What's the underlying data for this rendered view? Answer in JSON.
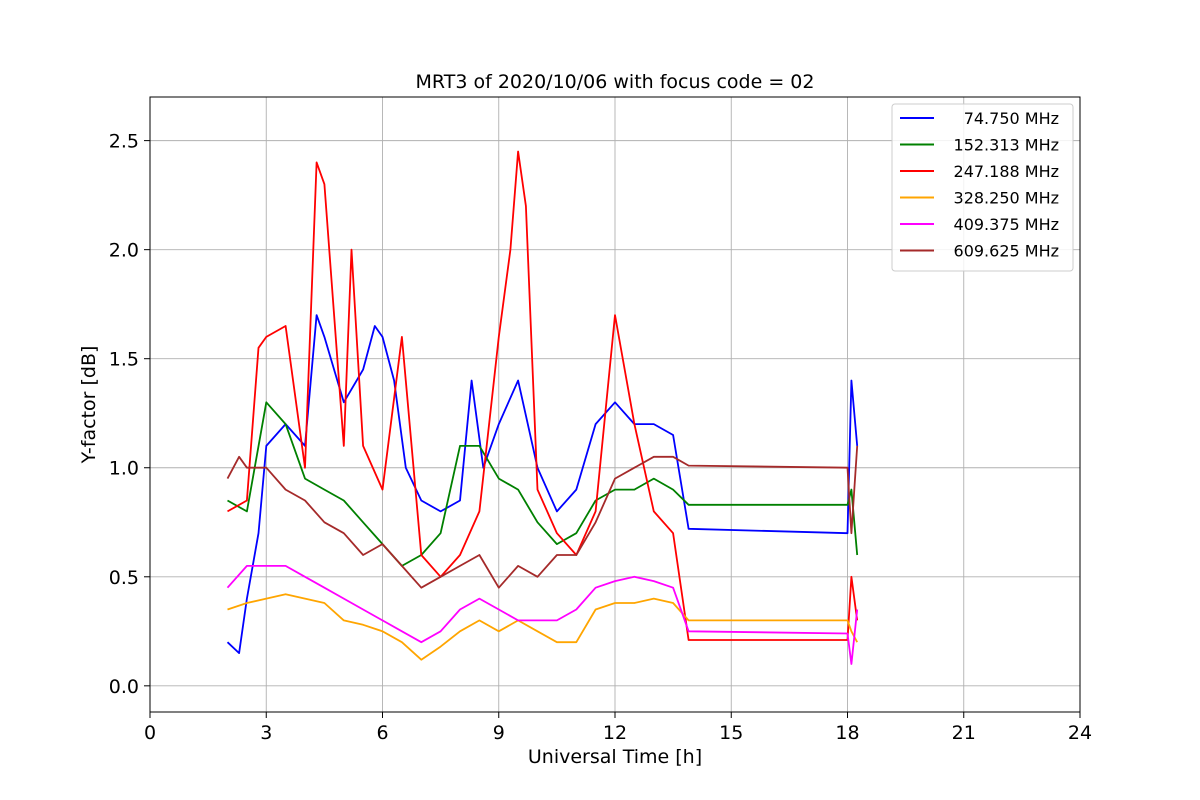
{
  "chart_data": {
    "type": "line",
    "title": "MRT3 of 2020/10/06 with focus code = 02",
    "xlabel": "Universal Time [h]",
    "ylabel": "Y-factor [dB]",
    "xlim": [
      0,
      24
    ],
    "ylim": [
      -0.12,
      2.7
    ],
    "xticks": [
      0,
      3,
      6,
      9,
      12,
      15,
      18,
      21,
      24
    ],
    "yticks": [
      0.0,
      0.5,
      1.0,
      1.5,
      2.0,
      2.5
    ],
    "xtick_labels": [
      "0",
      "3",
      "6",
      "9",
      "12",
      "15",
      "18",
      "21",
      "24"
    ],
    "ytick_labels": [
      "0.0",
      "0.5",
      "1.0",
      "1.5",
      "2.0",
      "2.5"
    ],
    "grid": true,
    "legend_position": "top-right",
    "series": [
      {
        "name": "74.750 MHz",
        "color": "#0000ff",
        "x": [
          2.0,
          2.3,
          2.5,
          2.8,
          3.0,
          3.5,
          4.0,
          4.3,
          4.5,
          5.0,
          5.5,
          5.8,
          6.0,
          6.3,
          6.6,
          7.0,
          7.5,
          8.0,
          8.3,
          8.6,
          9.0,
          9.5,
          10.0,
          10.5,
          11.0,
          11.5,
          12.0,
          12.5,
          13.0,
          13.5,
          13.9,
          18.0,
          18.1,
          18.25
        ],
        "y": [
          0.2,
          0.15,
          0.4,
          0.7,
          1.1,
          1.2,
          1.1,
          1.7,
          1.6,
          1.3,
          1.45,
          1.65,
          1.6,
          1.4,
          1.0,
          0.85,
          0.8,
          0.85,
          1.4,
          1.0,
          1.2,
          1.4,
          1.0,
          0.8,
          0.9,
          1.2,
          1.3,
          1.2,
          1.2,
          1.15,
          0.72,
          0.7,
          1.4,
          1.1
        ]
      },
      {
        "name": "152.313 MHz",
        "color": "#008000",
        "x": [
          2.0,
          2.5,
          3.0,
          3.5,
          4.0,
          4.5,
          5.0,
          5.5,
          6.0,
          6.5,
          7.0,
          7.5,
          8.0,
          8.5,
          9.0,
          9.5,
          10.0,
          10.5,
          11.0,
          11.5,
          12.0,
          12.5,
          13.0,
          13.5,
          13.9,
          18.0,
          18.1,
          18.25
        ],
        "y": [
          0.85,
          0.8,
          1.3,
          1.2,
          0.95,
          0.9,
          0.85,
          0.75,
          0.65,
          0.55,
          0.6,
          0.7,
          1.1,
          1.1,
          0.95,
          0.9,
          0.75,
          0.65,
          0.7,
          0.85,
          0.9,
          0.9,
          0.95,
          0.9,
          0.83,
          0.83,
          0.9,
          0.6
        ]
      },
      {
        "name": "247.188 MHz",
        "color": "#ff0000",
        "x": [
          2.0,
          2.5,
          2.8,
          3.0,
          3.5,
          4.0,
          4.3,
          4.5,
          5.0,
          5.2,
          5.5,
          6.0,
          6.5,
          7.0,
          7.5,
          8.0,
          8.5,
          9.0,
          9.3,
          9.5,
          9.7,
          10.0,
          10.5,
          11.0,
          11.5,
          12.0,
          12.5,
          13.0,
          13.5,
          13.9,
          18.0,
          18.1,
          18.25
        ],
        "y": [
          0.8,
          0.85,
          1.55,
          1.6,
          1.65,
          1.0,
          2.4,
          2.3,
          1.1,
          2.0,
          1.1,
          0.9,
          1.6,
          0.6,
          0.5,
          0.6,
          0.8,
          1.6,
          2.0,
          2.45,
          2.2,
          0.9,
          0.7,
          0.6,
          0.8,
          1.7,
          1.2,
          0.8,
          0.7,
          0.21,
          0.21,
          0.5,
          0.3
        ]
      },
      {
        "name": "328.250 MHz",
        "color": "#ffa500",
        "x": [
          2.0,
          2.5,
          3.0,
          3.5,
          4.0,
          4.5,
          5.0,
          5.5,
          6.0,
          6.5,
          7.0,
          7.5,
          8.0,
          8.5,
          9.0,
          9.5,
          10.0,
          10.5,
          11.0,
          11.5,
          12.0,
          12.5,
          13.0,
          13.5,
          13.9,
          18.0,
          18.1,
          18.25
        ],
        "y": [
          0.35,
          0.38,
          0.4,
          0.42,
          0.4,
          0.38,
          0.3,
          0.28,
          0.25,
          0.2,
          0.12,
          0.18,
          0.25,
          0.3,
          0.25,
          0.3,
          0.25,
          0.2,
          0.2,
          0.35,
          0.38,
          0.38,
          0.4,
          0.38,
          0.3,
          0.3,
          0.25,
          0.2
        ]
      },
      {
        "name": "409.375 MHz",
        "color": "#ff00ff",
        "x": [
          2.0,
          2.5,
          3.0,
          3.5,
          4.0,
          4.5,
          5.0,
          5.5,
          6.0,
          6.5,
          7.0,
          7.5,
          8.0,
          8.5,
          9.0,
          9.5,
          10.0,
          10.5,
          11.0,
          11.5,
          12.0,
          12.5,
          13.0,
          13.5,
          13.9,
          18.0,
          18.1,
          18.25
        ],
        "y": [
          0.45,
          0.55,
          0.55,
          0.55,
          0.5,
          0.45,
          0.4,
          0.35,
          0.3,
          0.25,
          0.2,
          0.25,
          0.35,
          0.4,
          0.35,
          0.3,
          0.3,
          0.3,
          0.35,
          0.45,
          0.48,
          0.5,
          0.48,
          0.45,
          0.25,
          0.24,
          0.1,
          0.35
        ]
      },
      {
        "name": "609.625 MHz",
        "color": "#a52a2a",
        "x": [
          2.0,
          2.3,
          2.5,
          3.0,
          3.5,
          4.0,
          4.5,
          5.0,
          5.5,
          6.0,
          6.5,
          7.0,
          7.5,
          8.0,
          8.5,
          9.0,
          9.5,
          10.0,
          10.5,
          11.0,
          11.5,
          12.0,
          12.5,
          13.0,
          13.5,
          13.9,
          18.0,
          18.1,
          18.25
        ],
        "y": [
          0.95,
          1.05,
          1.0,
          1.0,
          0.9,
          0.85,
          0.75,
          0.7,
          0.6,
          0.65,
          0.55,
          0.45,
          0.5,
          0.55,
          0.6,
          0.45,
          0.55,
          0.5,
          0.6,
          0.6,
          0.75,
          0.95,
          1.0,
          1.05,
          1.05,
          1.01,
          1.0,
          0.7,
          1.1
        ]
      }
    ]
  }
}
